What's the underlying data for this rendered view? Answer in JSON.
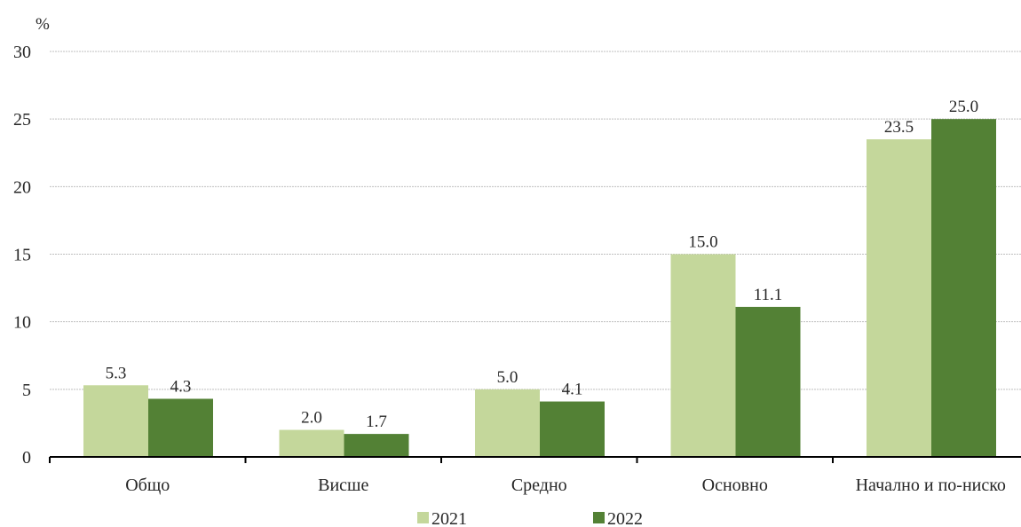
{
  "chart_data": {
    "type": "bar",
    "unit_label": "%",
    "categories": [
      "Общо",
      "Висше",
      "Средно",
      "Основно",
      "Начално и по-ниско"
    ],
    "series": [
      {
        "name": "2021",
        "values": [
          5.3,
          2.0,
          5.0,
          15.0,
          23.5
        ],
        "color": "#c4d79b"
      },
      {
        "name": "2022",
        "values": [
          4.3,
          1.7,
          4.1,
          11.1,
          25.0
        ],
        "color": "#538135"
      }
    ],
    "ylim": [
      0,
      30
    ],
    "yticks": [
      0,
      5,
      10,
      15,
      20,
      25,
      30
    ],
    "grid": true,
    "legend_position": "bottom",
    "title": "",
    "xlabel": "",
    "ylabel": ""
  }
}
